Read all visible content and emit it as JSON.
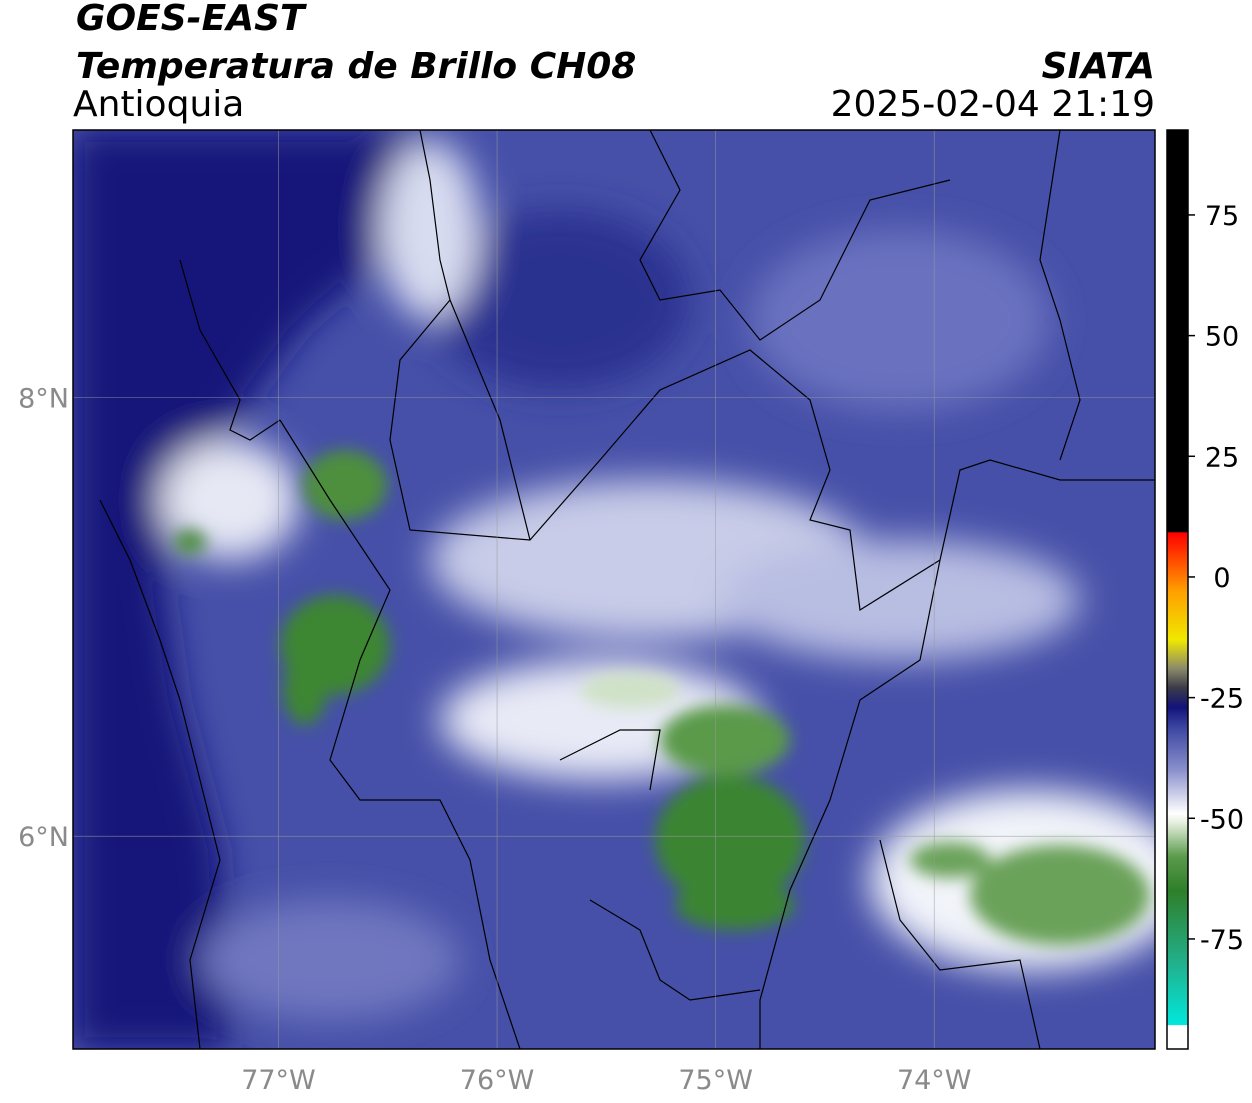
{
  "header": {
    "satellite": "GOES-EAST",
    "title": "Temperatura de Brillo CH08",
    "region": "Antioquia",
    "agency": "SIATA",
    "datetime": "2025-02-04 21:19"
  },
  "map": {
    "xlim": [
      -77.94,
      -72.99
    ],
    "ylim": [
      5.03,
      9.22
    ],
    "xticks": [
      {
        "value": -77,
        "label": "77°W"
      },
      {
        "value": -76,
        "label": "76°W"
      },
      {
        "value": -75,
        "label": "75°W"
      },
      {
        "value": -74,
        "label": "74°W"
      }
    ],
    "yticks": [
      {
        "value": 6,
        "label": "6°N"
      },
      {
        "value": 8,
        "label": "8°N"
      }
    ],
    "grid": true
  },
  "colorbar": {
    "lim": [
      -97.8,
      92.6
    ],
    "ticks": [
      -75,
      -50,
      -25,
      0,
      25,
      50,
      75
    ],
    "colors": [
      {
        "value": -97.8,
        "color": "#ffffff"
      },
      {
        "value": -92.9,
        "color": "#ffffff"
      },
      {
        "value": -92.8,
        "color": "#00e8dc"
      },
      {
        "value": -80,
        "color": "#22b08c"
      },
      {
        "value": -65,
        "color": "#2f7f2a"
      },
      {
        "value": -58,
        "color": "#5a9a4a"
      },
      {
        "value": -51,
        "color": "#e4eedc"
      },
      {
        "value": -49,
        "color": "#ffffff"
      },
      {
        "value": -40,
        "color": "#8a90cc"
      },
      {
        "value": -31,
        "color": "#3a44a0"
      },
      {
        "value": -27,
        "color": "#12127a"
      },
      {
        "value": -23,
        "color": "#3a3a48"
      },
      {
        "value": -19,
        "color": "#8a8a6a"
      },
      {
        "value": -13,
        "color": "#f0e800"
      },
      {
        "value": -3,
        "color": "#ffa000"
      },
      {
        "value": 9.2,
        "color": "#ff0000"
      },
      {
        "value": 9.3,
        "color": "#000000"
      },
      {
        "value": 92.6,
        "color": "#000000"
      }
    ]
  }
}
